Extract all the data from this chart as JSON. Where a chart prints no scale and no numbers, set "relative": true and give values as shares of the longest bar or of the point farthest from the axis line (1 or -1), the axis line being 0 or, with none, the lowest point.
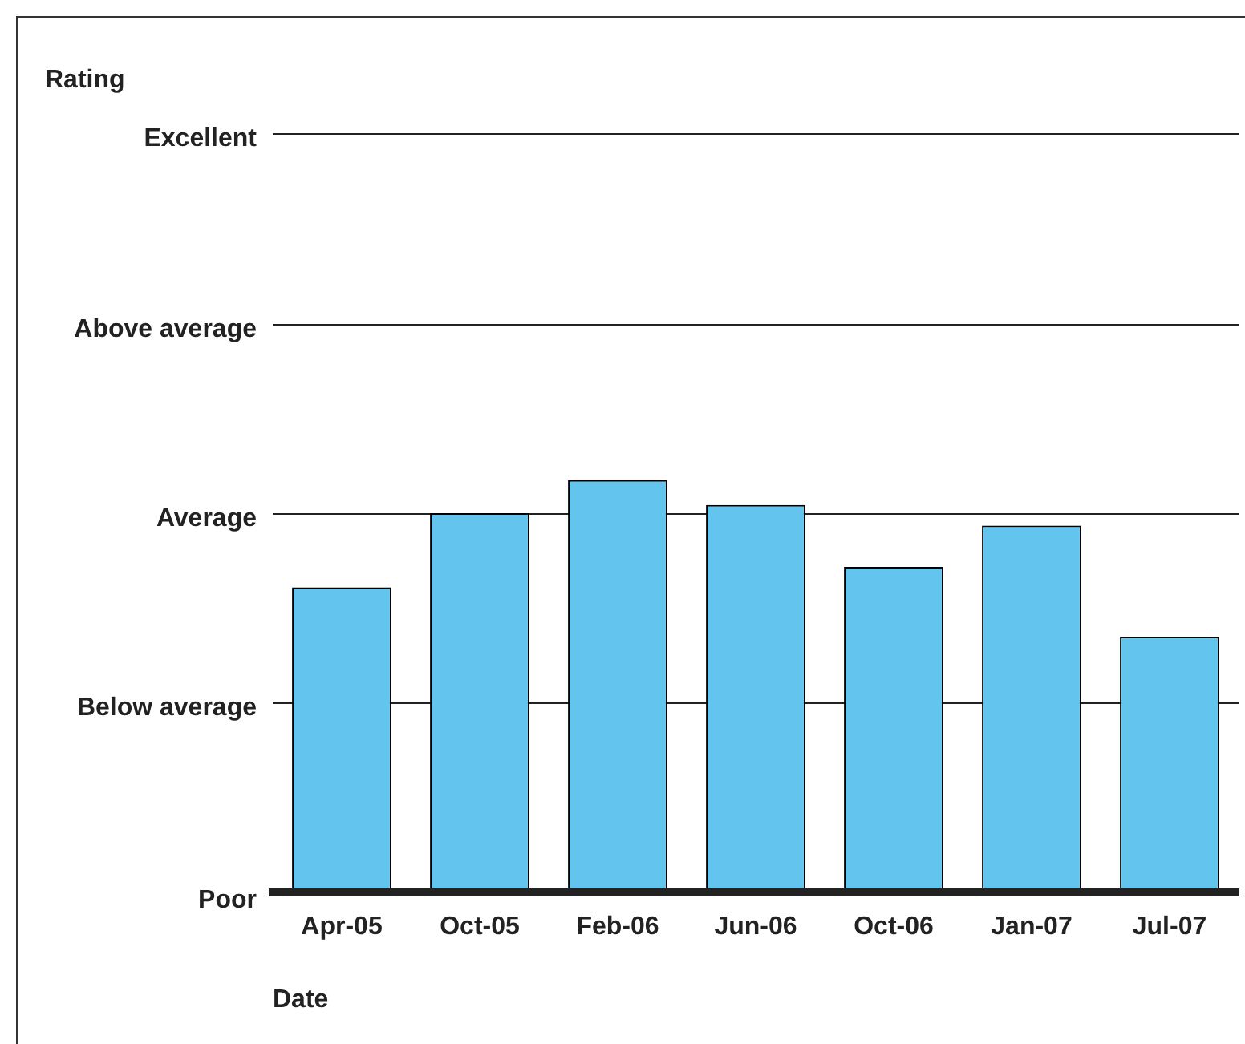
{
  "chart_data": {
    "type": "bar",
    "annotations": [
      "Rating",
      "Poor"
    ],
    "xlabel": "Date",
    "categories": [
      "Apr-05",
      "Oct-05",
      "Feb-06",
      "Jun-06",
      "Oct-06",
      "Jan-07",
      "Jul-07"
    ],
    "values": [
      0.74,
      0.92,
      1,
      0.94,
      0.79,
      0.89,
      0.62
    ],
    "color": "#63c5ee",
    "relative": true,
    "ref_lines": [
      {
        "axis": "y",
        "value": 0.46,
        "label": "Below average"
      },
      {
        "axis": "y",
        "value": 0.92,
        "label": "Average"
      },
      {
        "axis": "y",
        "value": 1.38,
        "label": "Above average"
      },
      {
        "axis": "y",
        "value": 1.84,
        "label": "Excellent"
      }
    ],
    "legend": false
  }
}
